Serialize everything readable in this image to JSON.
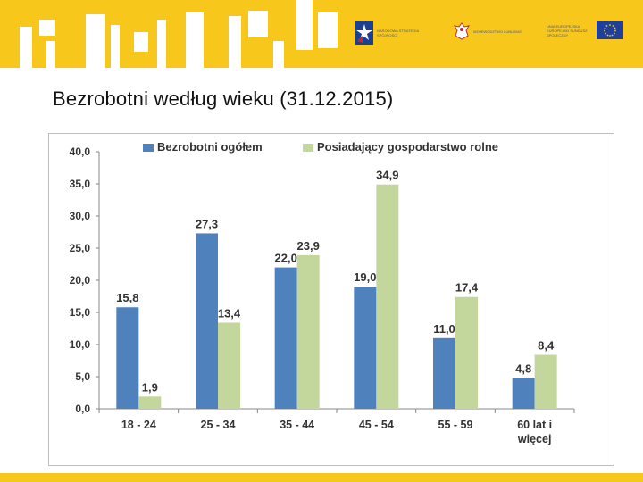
{
  "slide": {
    "title": "Bezrobotni według wieku (31.12.2015)"
  },
  "header": {
    "logos": [
      {
        "name": "fundusze-europejskie-logo",
        "text": "NARODOWA STRATEGIA SPÓJNOŚCI",
        "color": "#1d3f8f"
      },
      {
        "name": "ministry-emblem-logo",
        "text": "WOJEWÓDZTWO LUBUSKIE",
        "color": "#c0282d"
      },
      {
        "name": "eu-flag-logo",
        "text": "UNIA EUROPEJSKA EUROPEJSKI FUNDUSZ SPOŁECZNY",
        "color": "#1f3f99"
      }
    ]
  },
  "colors": {
    "band": "#f8c71c",
    "series1": "#4f81bd",
    "series2": "#c3d69b"
  },
  "chart_data": {
    "type": "bar",
    "title": "",
    "xlabel": "",
    "ylabel": "",
    "ylim": [
      0,
      40
    ],
    "ytick_labels": [
      "0,0",
      "5,0",
      "10,0",
      "15,0",
      "20,0",
      "25,0",
      "30,0",
      "35,0",
      "40,0"
    ],
    "categories": [
      "18 - 24",
      "25 - 34",
      "35 - 44",
      "45 - 54",
      "55 - 59",
      "60 lat i więcej"
    ],
    "category_lines": [
      [
        "18 - 24"
      ],
      [
        "25 - 34"
      ],
      [
        "35 - 44"
      ],
      [
        "45 - 54"
      ],
      [
        "55 - 59"
      ],
      [
        "60 lat i",
        "więcej"
      ]
    ],
    "series": [
      {
        "name": "Bezrobotni ogółem",
        "values": [
          15.8,
          27.3,
          22.0,
          19.0,
          11.0,
          4.8
        ],
        "labels": [
          "15,8",
          "27,3",
          "22,0",
          "19,0",
          "11,0",
          "4,8"
        ]
      },
      {
        "name": "Posiadający gospodarstwo  rolne",
        "values": [
          1.9,
          13.4,
          23.9,
          34.9,
          17.4,
          8.4
        ],
        "labels": [
          "1,9",
          "13,4",
          "23,9",
          "34,9",
          "17,4",
          "8,4"
        ]
      }
    ],
    "legend": "top",
    "grid": false
  }
}
